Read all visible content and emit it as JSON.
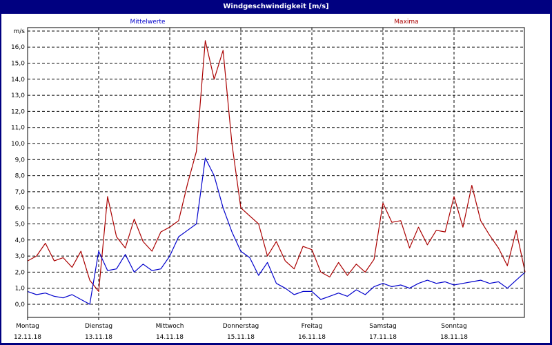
{
  "window": {
    "title": "Windgeschwindigkeit [m/s]"
  },
  "legend": {
    "mean_label": "Mittelwerte",
    "max_label": "Maxima",
    "mean_color": "#0000CC",
    "max_color": "#AA0000"
  },
  "axes": {
    "y_unit": "m/s",
    "y_ticks": [
      "16,0",
      "15,0",
      "14,0",
      "13,0",
      "12,0",
      "11,0",
      "10,0",
      "9,0",
      "8,0",
      "7,0",
      "6,0",
      "5,0",
      "4,0",
      "3,0",
      "2,0",
      "1,0",
      "0,0"
    ],
    "x_days": [
      {
        "day": "Montag",
        "date": "12.11.18"
      },
      {
        "day": "Dienstag",
        "date": "13.11.18"
      },
      {
        "day": "Mittwoch",
        "date": "14.11.18"
      },
      {
        "day": "Donnerstag",
        "date": "15.11.18"
      },
      {
        "day": "Freitag",
        "date": "16.11.18"
      },
      {
        "day": "Samstag",
        "date": "17.11.18"
      },
      {
        "day": "Sonntag",
        "date": "18.11.18"
      }
    ]
  },
  "chart_data": {
    "type": "line",
    "title": "Windgeschwindigkeit [m/s]",
    "xlabel": "",
    "ylabel": "m/s",
    "ylim": [
      -0.8,
      17.2
    ],
    "grid": true,
    "legend_position": "top",
    "categories": [
      "Montag 12.11.18",
      "Dienstag 13.11.18",
      "Mittwoch 14.11.18",
      "Donnerstag 15.11.18",
      "Freitag 16.11.18",
      "Samstag 17.11.18",
      "Sonntag 18.11.18"
    ],
    "x_hours": [
      0,
      3,
      6,
      9,
      12,
      15,
      18,
      21,
      24,
      27,
      30,
      33,
      36,
      39,
      42,
      45,
      48,
      51,
      54,
      57,
      60,
      63,
      66,
      69,
      72,
      75,
      78,
      81,
      84,
      87,
      90,
      93,
      96,
      99,
      102,
      105,
      108,
      111,
      114,
      117,
      120,
      123,
      126,
      129,
      132,
      135,
      138,
      141,
      144,
      147,
      150,
      153,
      156,
      159,
      162,
      165,
      168
    ],
    "series": [
      {
        "name": "Maxima",
        "color": "#AA0000",
        "values": [
          2.7,
          3.0,
          3.8,
          2.7,
          2.9,
          2.3,
          3.3,
          1.5,
          0.8,
          6.7,
          4.2,
          3.5,
          5.3,
          3.9,
          3.3,
          4.5,
          4.8,
          5.2,
          7.5,
          9.5,
          16.4,
          14.0,
          15.8,
          10.0,
          6.0,
          5.5,
          5.0,
          3.0,
          3.9,
          2.7,
          2.2,
          3.6,
          3.4,
          2.0,
          1.7,
          2.6,
          1.8,
          2.5,
          2.0,
          2.8,
          6.3,
          5.1,
          5.2,
          3.5,
          4.8,
          3.7,
          4.6,
          4.5,
          6.7,
          4.8,
          7.4,
          5.2,
          4.3,
          3.5,
          2.4,
          4.6,
          2.0
        ]
      },
      {
        "name": "Mittelwerte",
        "color": "#0000CC",
        "values": [
          0.8,
          0.6,
          0.7,
          0.5,
          0.4,
          0.6,
          0.3,
          0.0,
          3.3,
          2.1,
          2.2,
          3.1,
          2.0,
          2.5,
          2.1,
          2.2,
          3.0,
          4.2,
          4.6,
          5.0,
          9.1,
          8.0,
          6.0,
          4.5,
          3.3,
          2.9,
          1.8,
          2.6,
          1.3,
          1.0,
          0.6,
          0.8,
          0.8,
          0.3,
          0.5,
          0.7,
          0.5,
          0.9,
          0.6,
          1.1,
          1.3,
          1.1,
          1.2,
          1.0,
          1.3,
          1.5,
          1.3,
          1.4,
          1.2,
          1.3,
          1.4,
          1.5,
          1.3,
          1.4,
          1.0,
          1.5,
          2.0
        ]
      }
    ]
  }
}
